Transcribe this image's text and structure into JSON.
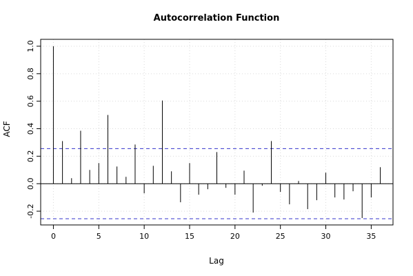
{
  "chart_data": {
    "type": "bar",
    "title": "Autocorrelation Function",
    "xlabel": "Lag",
    "ylabel": "ACF",
    "xlim": [
      -1.4,
      37.4
    ],
    "ylim": [
      -0.3,
      1.05
    ],
    "x_ticks": [
      0,
      5,
      10,
      15,
      20,
      25,
      30,
      35
    ],
    "y_ticks": [
      -0.2,
      0.0,
      0.2,
      0.4,
      0.6,
      0.8,
      1.0
    ],
    "y_tick_labels": [
      "-0.2",
      "0.0",
      "0.2",
      "0.4",
      "0.6",
      "0.8",
      "1.0"
    ],
    "grid": true,
    "confidence_bound": 0.255,
    "bar_color": "#000000",
    "bound_color": "#3333cc",
    "grid_color": "#d9d9d9",
    "lags": [
      0,
      1,
      2,
      3,
      4,
      5,
      6,
      7,
      8,
      9,
      10,
      11,
      12,
      13,
      14,
      15,
      16,
      17,
      18,
      19,
      20,
      21,
      22,
      23,
      24,
      25,
      26,
      27,
      28,
      29,
      30,
      31,
      32,
      33,
      34,
      35,
      36
    ],
    "values": [
      1.0,
      0.31,
      0.04,
      0.385,
      0.1,
      0.15,
      0.5,
      0.125,
      0.05,
      0.285,
      -0.07,
      0.13,
      0.605,
      0.09,
      -0.135,
      0.15,
      -0.08,
      -0.04,
      0.23,
      -0.03,
      -0.08,
      0.095,
      -0.21,
      -0.015,
      0.31,
      -0.06,
      -0.15,
      0.02,
      -0.185,
      -0.12,
      0.08,
      -0.1,
      -0.115,
      -0.055,
      -0.25,
      -0.1,
      0.12
    ]
  }
}
